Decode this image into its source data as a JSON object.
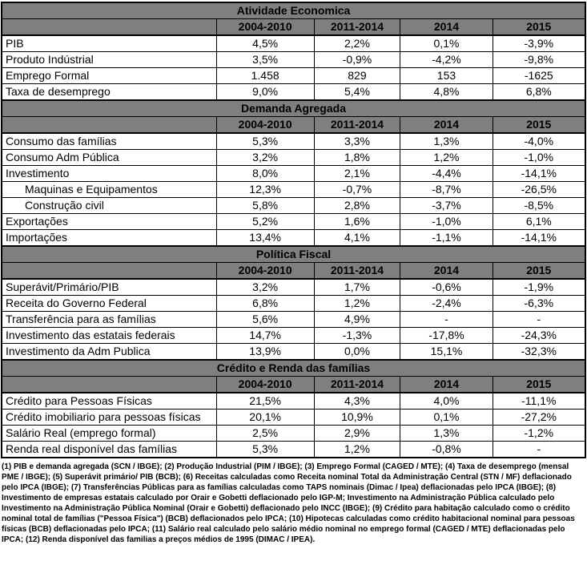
{
  "table": {
    "columns": [
      "2004-2010",
      "2011-2014",
      "2014",
      "2015"
    ],
    "sections": [
      {
        "title": "Atividade Economica",
        "rows": [
          {
            "label": "PIB",
            "indent": false,
            "values": [
              "4,5%",
              "2,2%",
              "0,1%",
              "-3,9%"
            ]
          },
          {
            "label": "Produto Indústrial",
            "indent": false,
            "values": [
              "3,5%",
              "-0,9%",
              "-4,2%",
              "-9,8%"
            ]
          },
          {
            "label": "Emprego Formal",
            "indent": false,
            "values": [
              "1.458",
              "829",
              "153",
              "-1625"
            ]
          },
          {
            "label": "Taxa de desemprego",
            "indent": false,
            "values": [
              "9,0%",
              "5,4%",
              "4,8%",
              "6,8%"
            ]
          }
        ]
      },
      {
        "title": "Demanda Agregada",
        "rows": [
          {
            "label": "Consumo das famílias",
            "indent": false,
            "values": [
              "5,3%",
              "3,3%",
              "1,3%",
              "-4,0%"
            ]
          },
          {
            "label": "Consumo Adm Pública",
            "indent": false,
            "values": [
              "3,2%",
              "1,8%",
              "1,2%",
              "-1,0%"
            ]
          },
          {
            "label": "Investimento",
            "indent": false,
            "values": [
              "8,0%",
              "2,1%",
              "-4,4%",
              "-14,1%"
            ]
          },
          {
            "label": "Maquinas e Equipamentos",
            "indent": true,
            "values": [
              "12,3%",
              "-0,7%",
              "-8,7%",
              "-26,5%"
            ]
          },
          {
            "label": "Construção civil",
            "indent": true,
            "values": [
              "5,8%",
              "2,8%",
              "-3,7%",
              "-8,5%"
            ]
          },
          {
            "label": "Exportações",
            "indent": false,
            "values": [
              "5,2%",
              "1,6%",
              "-1,0%",
              "6,1%"
            ]
          },
          {
            "label": "Importações",
            "indent": false,
            "values": [
              "13,4%",
              "4,1%",
              "-1,1%",
              "-14,1%"
            ]
          }
        ]
      },
      {
        "title": "Política Fiscal",
        "rows": [
          {
            "label": "Superávit/Primário/PIB",
            "indent": false,
            "values": [
              "3,2%",
              "1,7%",
              "-0,6%",
              "-1,9%"
            ]
          },
          {
            "label": "Receita do Governo Federal",
            "indent": false,
            "values": [
              "6,8%",
              "1,2%",
              "-2,4%",
              "-6,3%"
            ]
          },
          {
            "label": "Transferência para as famílias",
            "indent": false,
            "values": [
              "5,6%",
              "4,9%",
              "-",
              "-"
            ]
          },
          {
            "label": "Investimento das estatais federais",
            "indent": false,
            "values": [
              "14,7%",
              "-1,3%",
              "-17,8%",
              "-24,3%"
            ]
          },
          {
            "label": "Investimento da Adm Publica",
            "indent": false,
            "values": [
              "13,9%",
              "0,0%",
              "15,1%",
              "-32,3%"
            ]
          }
        ]
      },
      {
        "title": "Crédito e Renda das famílias",
        "rows": [
          {
            "label": "Crédito para Pessoas Físicas",
            "indent": false,
            "values": [
              "21,5%",
              "4,3%",
              "4,0%",
              "-11,1%"
            ]
          },
          {
            "label": "Crédito imobiliario para pessoas físicas",
            "indent": false,
            "values": [
              "20,1%",
              "10,9%",
              "0,1%",
              "-27,2%"
            ]
          },
          {
            "label": "Salário Real (emprego formal)",
            "indent": false,
            "values": [
              "2,5%",
              "2,9%",
              "1,3%",
              "-1,2%"
            ]
          },
          {
            "label": "Renda real disponível das famílias",
            "indent": false,
            "values": [
              "5,3%",
              "1,2%",
              "-0,8%",
              "-"
            ]
          }
        ]
      }
    ]
  },
  "footnotes": "(1) PIB e demanda agregada (SCN / IBGE); (2) Produção Industrial (PIM / IBGE); (3) Emprego Formal (CAGED / MTE); (4) Taxa de desemprego (mensal PME / IBGE); (5) Superávit primário/ PIB (BCB); (6) Receitas calculadas como Receita nominal Total da Administração Central (STN / MF) deflacionado pelo IPCA (IBGE); (7) Transferências Públicas para as famílias calculadas como TAPS nominais (Dimac / Ipea) deflacionadas pelo IPCA (IBGE); (8) Investimento de empresas estatais calculado por Orair e Gobetti deflacionado pelo IGP-M; Investimento na Administração Pública calculado pelo Investimento na Administração Pública Nominal (Orair e Gobetti) deflacionado pelo INCC (IBGE); (9) Crédito para habitação calculado como o crédito nominal total de famílias (\"Pessoa Física\") (BCB) deflacionados pelo IPCA; (10) Hipotecas calculadas como crédito habitacional nominal para pessoas físicas (BCB) deflacionadas pelo IPCA; (11) Salário real calculado pelo salário médio nominal no emprego formal (CAGED / MTE) deflacionadas pelo IPCA; (12) Renda disponível das familias a preços médios de 1995 (DIMAC / IPEA).",
  "colors": {
    "header_bg": "#7f7f7f",
    "border": "#000000",
    "row_bg": "#ffffff",
    "text": "#000000"
  }
}
